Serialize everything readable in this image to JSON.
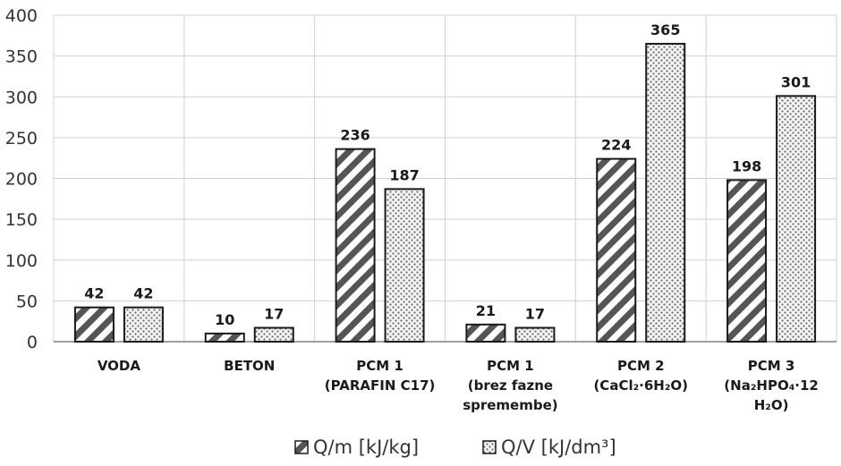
{
  "chart_data": {
    "type": "bar",
    "categories": [
      [
        "VODA"
      ],
      [
        "BETON"
      ],
      [
        "PCM 1",
        "(PARAFIN C17)"
      ],
      [
        "PCM 1",
        "(brez fazne",
        "spremembe)"
      ],
      [
        "PCM 2",
        "(CaCl₂·6H₂O)"
      ],
      [
        "PCM 3",
        "(Na₂HPO₄·12",
        "H₂O)"
      ]
    ],
    "series": [
      {
        "name": "Q/m [kJ/kg]",
        "values": [
          42,
          10,
          236,
          21,
          224,
          198
        ],
        "pattern": "diagonal-stripes"
      },
      {
        "name": "Q/V [kJ/dm³]",
        "values": [
          42,
          17,
          187,
          17,
          365,
          301
        ],
        "pattern": "dots"
      }
    ],
    "ylim": [
      0,
      400
    ],
    "yticks": [
      0,
      50,
      100,
      150,
      200,
      250,
      300,
      350,
      400
    ],
    "grid": true,
    "legend_position": "bottom",
    "colors": {
      "bar_outline": "#1a1a1a",
      "grid": "#d0d0d0",
      "axis": "#808080"
    }
  }
}
